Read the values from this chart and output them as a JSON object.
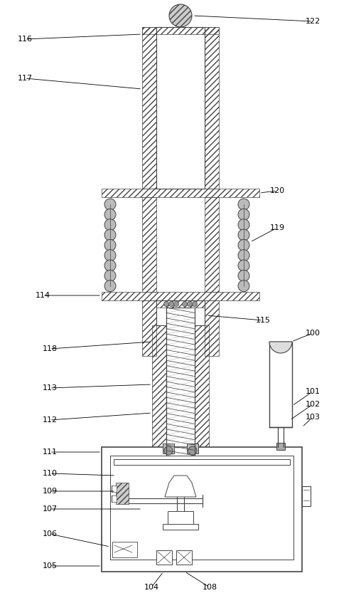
{
  "figsize": [
    5.08,
    8.4
  ],
  "dpi": 100,
  "bg_color": "#ffffff",
  "lc": "#444444",
  "lw": 0.8,
  "hatch_lc": "#666666"
}
